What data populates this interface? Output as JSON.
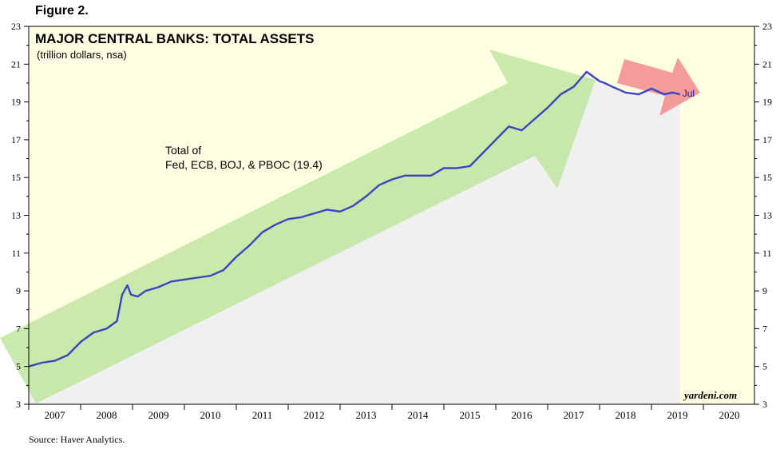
{
  "figure_label": "Figure 2.",
  "source": "Source: Haver Analytics.",
  "colors": {
    "plot_background": "#fefee3",
    "area_fill": "#f0f0f0",
    "line": "#3d44bf",
    "green_arrow": "#bfe6a0",
    "red_arrow": "#f39191"
  },
  "chart_data": {
    "type": "line",
    "title": "MAJOR CENTRAL BANKS: TOTAL ASSETS",
    "subtitle": "(trillion dollars, nsa)",
    "annotation": [
      "Total of",
      "Fed, ECB, BOJ, & PBOC (19.4)"
    ],
    "end_label": "Jul",
    "credit": "yardeni.com",
    "xlabel": "",
    "ylabel": "",
    "ylim": [
      3,
      23
    ],
    "yticks": [
      3,
      5,
      7,
      9,
      11,
      13,
      15,
      17,
      19,
      21,
      23
    ],
    "xlim": [
      2007,
      2021
    ],
    "xticks": [
      "2007",
      "2008",
      "2009",
      "2010",
      "2011",
      "2012",
      "2013",
      "2014",
      "2015",
      "2016",
      "2017",
      "2018",
      "2019",
      "2020"
    ],
    "grid": false,
    "series": [
      {
        "x": [
          2007.0,
          2007.25,
          2007.5,
          2007.75,
          2008.0,
          2008.25,
          2008.5,
          2008.7,
          2008.8,
          2008.9,
          2008.97,
          2009.1,
          2009.25,
          2009.5,
          2009.75,
          2010.0,
          2010.25,
          2010.5,
          2010.75,
          2011.0,
          2011.25,
          2011.5,
          2011.75,
          2012.0,
          2012.25,
          2012.5,
          2012.75,
          2013.0,
          2013.25,
          2013.5,
          2013.75,
          2014.0,
          2014.25,
          2014.5,
          2014.75,
          2015.0,
          2015.25,
          2015.5,
          2015.75,
          2016.0,
          2016.25,
          2016.5,
          2016.75,
          2017.0,
          2017.25,
          2017.5,
          2017.75,
          2017.9,
          2018.0,
          2018.1,
          2018.25,
          2018.5,
          2018.75,
          2019.0,
          2019.25,
          2019.4,
          2019.55
        ],
        "values": [
          5.0,
          5.2,
          5.3,
          5.6,
          6.3,
          6.8,
          7.0,
          7.4,
          8.8,
          9.3,
          8.8,
          8.7,
          9.0,
          9.2,
          9.5,
          9.6,
          9.7,
          9.8,
          10.1,
          10.8,
          11.4,
          12.1,
          12.5,
          12.8,
          12.9,
          13.1,
          13.3,
          13.2,
          13.5,
          14.0,
          14.6,
          14.9,
          15.1,
          15.1,
          15.1,
          15.5,
          15.5,
          15.6,
          16.3,
          17.0,
          17.7,
          17.5,
          18.1,
          18.7,
          19.4,
          19.8,
          20.6,
          20.3,
          20.1,
          20.0,
          19.8,
          19.5,
          19.4,
          19.7,
          19.4,
          19.5,
          19.4
        ]
      }
    ]
  }
}
